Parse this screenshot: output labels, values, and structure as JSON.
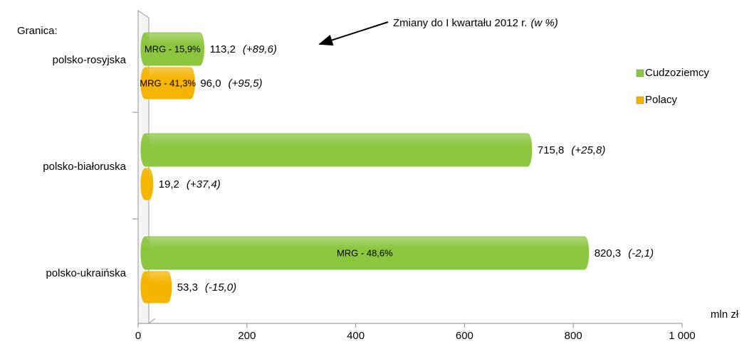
{
  "chart_data": {
    "type": "bar",
    "orientation": "horizontal",
    "legend_title": "Granica:",
    "categories": [
      "polsko-rosyjska",
      "polsko-białoruska",
      "polsko-ukraińska"
    ],
    "series": [
      {
        "name": "Cudzoziemcy",
        "color": "#8cc63e",
        "values": [
          113.2,
          715.8,
          820.3
        ],
        "value_labels": [
          "113,2",
          "715,8",
          "820,3"
        ],
        "change_labels": [
          "(+89,6)",
          "(+25,8)",
          "(-2,1)"
        ],
        "inner_labels": [
          "MRG - 15,9%",
          null,
          "MRG - 48,6%"
        ]
      },
      {
        "name": "Polacy",
        "color": "#f5b400",
        "values": [
          96.0,
          19.2,
          53.3
        ],
        "value_labels": [
          "96,0",
          "19,2",
          "53,3"
        ],
        "change_labels": [
          "(+95,5)",
          "(+37,4)",
          "(-15,0)"
        ],
        "inner_labels": [
          "MRG - 41,3%",
          null,
          null
        ]
      }
    ],
    "annotation": "Zmiany do I kwartału 2012 r.",
    "annotation_unit": "(w %)",
    "x_unit": "mln zł",
    "xlim": [
      0,
      1000
    ],
    "xticks": [
      0,
      200,
      400,
      600,
      800,
      {
        "value": 1000,
        "label": "1 000"
      }
    ],
    "legend_position": "right"
  }
}
